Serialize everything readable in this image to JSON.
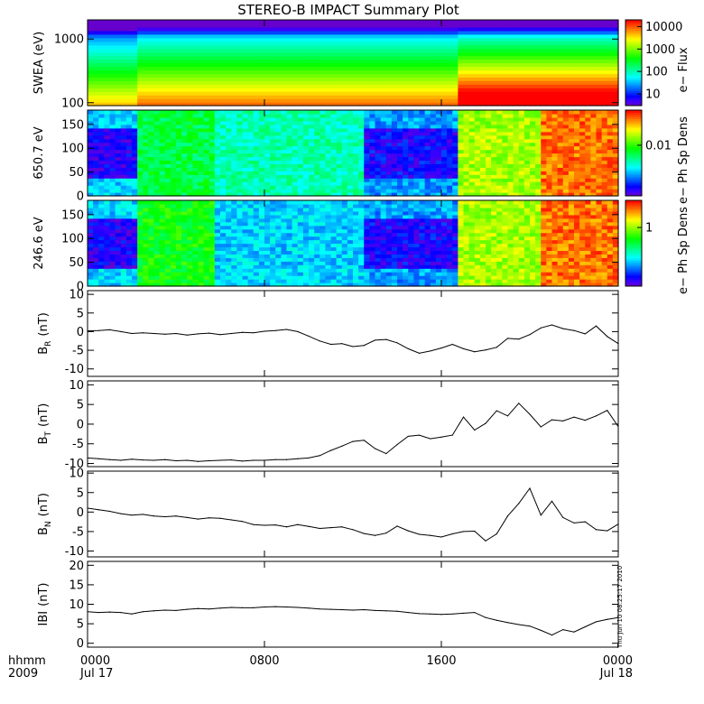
{
  "title": "STEREO-B IMPACT Summary Plot",
  "time_axis": {
    "row_labels": [
      "hhmm",
      "2009"
    ],
    "ticks": [
      {
        "hour": 0,
        "label": "0000",
        "date": "Jul 17"
      },
      {
        "hour": 8,
        "label": "0800",
        "date": ""
      },
      {
        "hour": 16,
        "label": "1600",
        "date": ""
      },
      {
        "hour": 24,
        "label": "0000",
        "date": "Jul 18"
      }
    ],
    "range_hours": [
      0,
      24
    ]
  },
  "creation_stamp": "Thu Jun 10 08:25:17 2010",
  "colors": {
    "line": "#000000",
    "background": "#ffffff"
  },
  "chart_data": [
    {
      "type": "heatmap",
      "ylabel": "SWEA (eV)",
      "yscale": "log",
      "ylim": [
        90,
        2000
      ],
      "yticks": [
        {
          "v": 100,
          "label": "100"
        },
        {
          "v": 1000,
          "label": "1000"
        }
      ],
      "colorbar": {
        "label": "e− Flux",
        "scale": "log",
        "range": [
          3,
          20000
        ],
        "ticks": [
          {
            "v": 10,
            "label": "10"
          },
          {
            "v": 100,
            "label": "100"
          },
          {
            "v": 1000,
            "label": "1000"
          },
          {
            "v": 10000,
            "label": "10000"
          }
        ]
      }
    },
    {
      "type": "heatmap",
      "ylabel": "650.7 eV",
      "ylim": [
        0,
        180
      ],
      "yticks": [
        {
          "v": 0,
          "label": "0"
        },
        {
          "v": 50,
          "label": "50"
        },
        {
          "v": 100,
          "label": "100"
        },
        {
          "v": 150,
          "label": "150"
        }
      ],
      "colorbar": {
        "label": "e− Ph Sp Dens",
        "scale": "log",
        "range": [
          0.0005,
          0.08
        ],
        "ticks": [
          {
            "v": 0.01,
            "label": "0.01"
          }
        ]
      }
    },
    {
      "type": "heatmap",
      "ylabel": "246.6 eV",
      "ylim": [
        0,
        180
      ],
      "yticks": [
        {
          "v": 0,
          "label": "0"
        },
        {
          "v": 50,
          "label": "50"
        },
        {
          "v": 100,
          "label": "100"
        },
        {
          "v": 150,
          "label": "150"
        }
      ],
      "colorbar": {
        "label": "e− Ph Sp Dens",
        "scale": "log",
        "range": [
          0.05,
          4
        ],
        "ticks": [
          {
            "v": 1,
            "label": "1"
          }
        ]
      }
    },
    {
      "type": "line",
      "ylabel": "B",
      "ylabel_sub": "R",
      "ylabel_unit": "(nT)",
      "ylim": [
        -12,
        11
      ],
      "yticks": [
        -10,
        -5,
        0,
        5,
        10
      ],
      "x": [
        0,
        0.5,
        1,
        1.5,
        2,
        2.5,
        3,
        3.5,
        4,
        4.5,
        5,
        5.5,
        6,
        6.5,
        7,
        7.5,
        8,
        8.5,
        9,
        9.5,
        10,
        10.5,
        11,
        11.5,
        12,
        12.5,
        13,
        13.5,
        14,
        14.5,
        15,
        15.5,
        16,
        16.5,
        17,
        17.5,
        18,
        18.5,
        19,
        19.5,
        20,
        20.5,
        21,
        21.5,
        22,
        22.5,
        23,
        23.5,
        24
      ],
      "y": [
        0.2,
        0.3,
        0.5,
        0,
        -0.5,
        -0.3,
        -0.5,
        -0.7,
        -0.5,
        -0.9,
        -0.6,
        -0.4,
        -0.8,
        -0.5,
        -0.2,
        -0.3,
        0.1,
        0.3,
        0.6,
        0,
        -1.2,
        -2.5,
        -3.4,
        -3.2,
        -4,
        -3.7,
        -2.3,
        -2.1,
        -3,
        -4.6,
        -5.8,
        -5.2,
        -4.4,
        -3.4,
        -4.6,
        -5.4,
        -4.9,
        -4.2,
        -1.8,
        -2,
        -0.8,
        1,
        1.8,
        0.8,
        0.3,
        -0.6,
        1.5,
        -1.3,
        -3.2
      ]
    },
    {
      "type": "line",
      "ylabel": "B",
      "ylabel_sub": "T",
      "ylabel_unit": "(nT)",
      "ylim": [
        -10.8,
        11
      ],
      "yticks": [
        -10,
        -5,
        0,
        5,
        10
      ],
      "x": [
        0,
        0.5,
        1,
        1.5,
        2,
        2.5,
        3,
        3.5,
        4,
        4.5,
        5,
        5.5,
        6,
        6.5,
        7,
        7.5,
        8,
        8.5,
        9,
        9.5,
        10,
        10.5,
        11,
        11.5,
        12,
        12.5,
        13,
        13.5,
        14,
        14.5,
        15,
        15.5,
        16,
        16.5,
        17,
        17.5,
        18,
        18.5,
        19,
        19.5,
        20,
        20.5,
        21,
        21.5,
        22,
        22.5,
        23,
        23.5,
        24
      ],
      "y": [
        -8.6,
        -8.8,
        -9,
        -9.2,
        -8.9,
        -9.1,
        -9.2,
        -9,
        -9.3,
        -9.2,
        -9.5,
        -9.3,
        -9.2,
        -9.1,
        -9.4,
        -9.2,
        -9.2,
        -9,
        -9,
        -8.8,
        -8.6,
        -8,
        -6.7,
        -5.6,
        -4.4,
        -4.1,
        -6.2,
        -7.5,
        -5.2,
        -3.1,
        -2.8,
        -3.7,
        -3.3,
        -2.8,
        1.8,
        -1.5,
        0.2,
        3.4,
        2.1,
        5.3,
        2.5,
        -0.7,
        1.1,
        0.8,
        1.8,
        1,
        2.1,
        3.5,
        -0.6
      ]
    },
    {
      "type": "line",
      "ylabel": "B",
      "ylabel_sub": "N",
      "ylabel_unit": "(nT)",
      "ylim": [
        -11.5,
        10.5
      ],
      "yticks": [
        -10,
        -5,
        0,
        5,
        10
      ],
      "x": [
        0,
        0.5,
        1,
        1.5,
        2,
        2.5,
        3,
        3.5,
        4,
        4.5,
        5,
        5.5,
        6,
        6.5,
        7,
        7.5,
        8,
        8.5,
        9,
        9.5,
        10,
        10.5,
        11,
        11.5,
        12,
        12.5,
        13,
        13.5,
        14,
        14.5,
        15,
        15.5,
        16,
        16.5,
        17,
        17.5,
        18,
        18.5,
        19,
        19.5,
        20,
        20.5,
        21,
        21.5,
        22,
        22.5,
        23,
        23.5,
        24
      ],
      "y": [
        1,
        0.6,
        0.2,
        -0.4,
        -0.8,
        -0.6,
        -1,
        -1.2,
        -1,
        -1.4,
        -1.8,
        -1.5,
        -1.6,
        -2,
        -2.4,
        -3.2,
        -3.4,
        -3.3,
        -3.8,
        -3.2,
        -3.7,
        -4.2,
        -4,
        -3.8,
        -4.5,
        -5.5,
        -6,
        -5.4,
        -3.6,
        -4.8,
        -5.7,
        -6,
        -6.4,
        -5.6,
        -5,
        -4.9,
        -7.4,
        -5.6,
        -1,
        2.2,
        6.1,
        -0.8,
        2.8,
        -1.4,
        -2.8,
        -2.5,
        -4.5,
        -4.8,
        -3.1
      ]
    },
    {
      "type": "line",
      "ylabel": "IBI",
      "ylabel_unit": "(nT)",
      "ylim": [
        -1,
        21
      ],
      "yticks": [
        0,
        5,
        10,
        15,
        20
      ],
      "x": [
        0,
        0.5,
        1,
        1.5,
        2,
        2.5,
        3,
        3.5,
        4,
        4.5,
        5,
        5.5,
        6,
        6.5,
        7,
        7.5,
        8,
        8.5,
        9,
        9.5,
        10,
        10.5,
        11,
        11.5,
        12,
        12.5,
        13,
        13.5,
        14,
        14.5,
        15,
        15.5,
        16,
        16.5,
        17,
        17.5,
        18,
        18.5,
        19,
        19.5,
        20,
        20.5,
        21,
        21.5,
        22,
        22.5,
        23,
        23.5,
        24
      ],
      "y": [
        8.1,
        7.9,
        8,
        7.9,
        7.5,
        8.1,
        8.3,
        8.5,
        8.4,
        8.7,
        8.9,
        8.8,
        9,
        9.2,
        9.1,
        9.1,
        9.3,
        9.4,
        9.3,
        9.2,
        9,
        8.8,
        8.7,
        8.6,
        8.5,
        8.6,
        8.4,
        8.3,
        8.2,
        7.9,
        7.6,
        7.5,
        7.4,
        7.5,
        7.7,
        7.9,
        6.6,
        5.9,
        5.3,
        4.8,
        4.4,
        3.3,
        2.1,
        3.5,
        2.9,
        4.2,
        5.5,
        6.1,
        6.6
      ]
    }
  ]
}
